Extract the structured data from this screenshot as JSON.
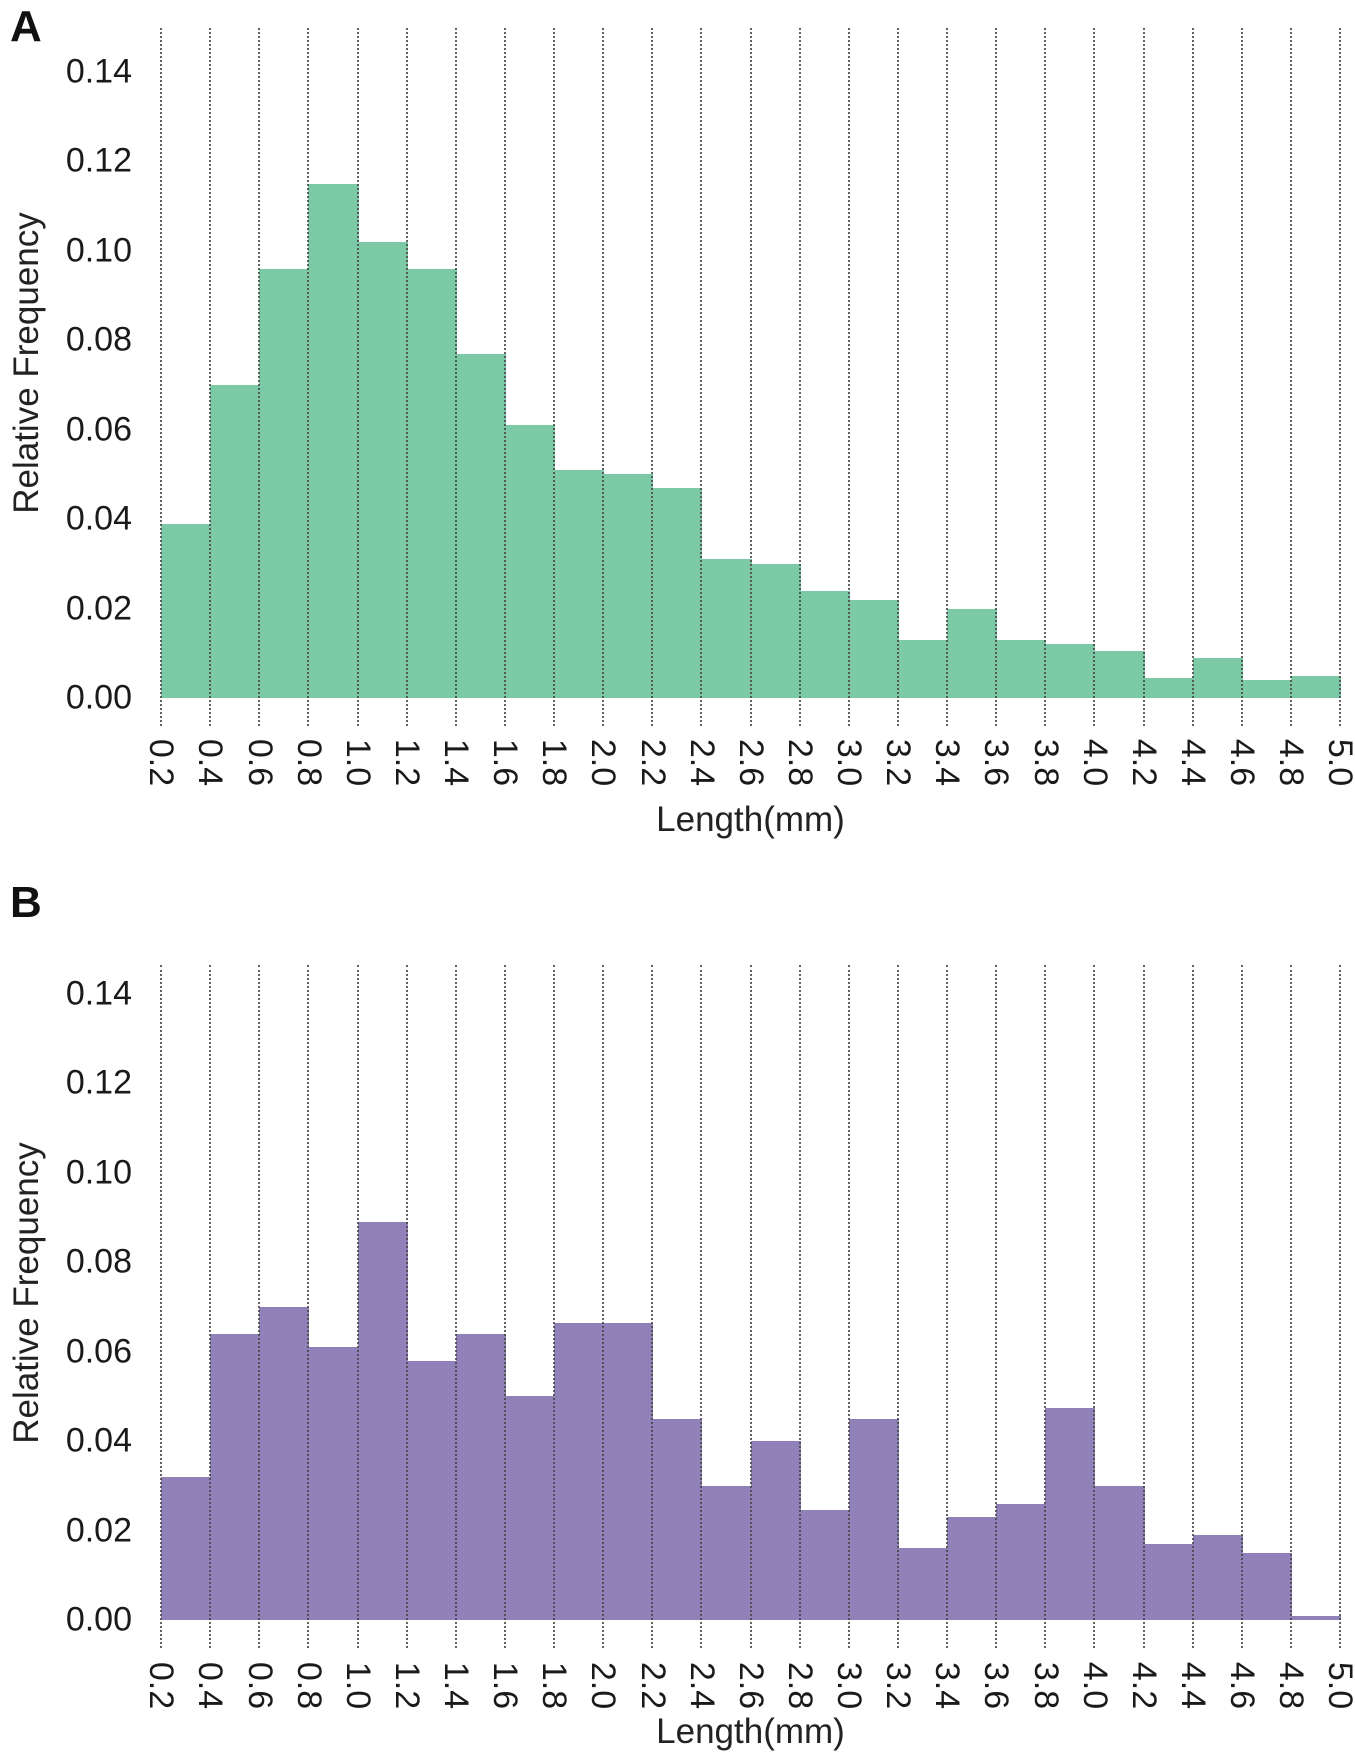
{
  "figure": {
    "panels": [
      {
        "letter": "A",
        "x_axis_label": "Length(mm)",
        "y_axis_label": "Relative Frequency",
        "bar_color": "#7ccaa5"
      },
      {
        "letter": "B",
        "x_axis_label": "Length(mm)",
        "y_axis_label": "Relative Frequency",
        "bar_color": "#9082b8"
      }
    ]
  },
  "chart_data": [
    {
      "type": "bar",
      "subtype": "histogram",
      "title": "",
      "xlabel": "Length(mm)",
      "ylabel": "Relative Frequency",
      "color": "#7ccaa5",
      "bin_start": 0.2,
      "bin_width": 0.2,
      "x_tick_labels": [
        "0.2",
        "0.4",
        "0.6",
        "0.8",
        "1.0",
        "1.2",
        "1.4",
        "1.6",
        "1.8",
        "2.0",
        "2.2",
        "2.4",
        "2.6",
        "2.8",
        "3.0",
        "3.2",
        "3.4",
        "3.6",
        "3.8",
        "4.0",
        "4.2",
        "4.4",
        "4.6",
        "4.8",
        "5.0"
      ],
      "y_tick_labels": [
        "0.00",
        "0.02",
        "0.04",
        "0.06",
        "0.08",
        "0.10",
        "0.12",
        "0.14"
      ],
      "ylim": [
        0,
        0.15
      ],
      "grid": "vertical-dotted",
      "legend": "none",
      "values": [
        0.039,
        0.07,
        0.096,
        0.115,
        0.102,
        0.096,
        0.077,
        0.061,
        0.051,
        0.05,
        0.047,
        0.031,
        0.03,
        0.024,
        0.022,
        0.013,
        0.02,
        0.013,
        0.012,
        0.0105,
        0.0045,
        0.009,
        0.004,
        0.005
      ]
    },
    {
      "type": "bar",
      "subtype": "histogram",
      "title": "",
      "xlabel": "Length(mm)",
      "ylabel": "Relative Frequency",
      "color": "#9082b8",
      "bin_start": 0.2,
      "bin_width": 0.2,
      "x_tick_labels": [
        "0.2",
        "0.4",
        "0.6",
        "0.8",
        "1.0",
        "1.2",
        "1.4",
        "1.6",
        "1.8",
        "2.0",
        "2.2",
        "2.4",
        "2.6",
        "2.8",
        "3.0",
        "3.2",
        "3.4",
        "3.6",
        "3.8",
        "4.0",
        "4.2",
        "4.4",
        "4.6",
        "4.8",
        "5.0"
      ],
      "y_tick_labels": [
        "0.00",
        "0.02",
        "0.04",
        "0.06",
        "0.08",
        "0.10",
        "0.12",
        "0.14"
      ],
      "ylim": [
        0,
        0.145
      ],
      "grid": "vertical-dotted",
      "legend": "none",
      "values": [
        0.032,
        0.064,
        0.07,
        0.061,
        0.089,
        0.058,
        0.064,
        0.05,
        0.0665,
        0.0665,
        0.045,
        0.03,
        0.04,
        0.0245,
        0.045,
        0.016,
        0.023,
        0.026,
        0.0475,
        0.03,
        0.017,
        0.019,
        0.015,
        0.001
      ]
    }
  ]
}
